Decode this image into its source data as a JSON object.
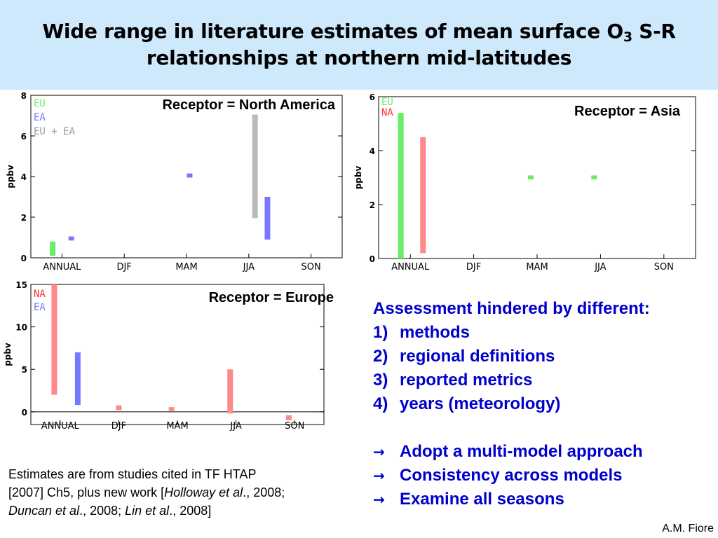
{
  "slide": {
    "title_pre": "Wide range in literature estimates of mean surface O",
    "title_sub": "3",
    "title_post": " S-R relationships at northern mid-latitudes",
    "banner_color": "#cde9fb",
    "author": "A.M. Fiore"
  },
  "colors": {
    "EU": "#66ee66",
    "EA": "#7777ff",
    "EU + EA": "#bbbbbb",
    "NA": "#ff8888"
  },
  "chart_data": [
    {
      "type": "bar",
      "title": "Receptor = North America",
      "ylabel": "ppbv",
      "categories": [
        "ANNUAL",
        "DJF",
        "MAM",
        "JJA",
        "SON"
      ],
      "ylim": [
        0,
        8
      ],
      "yticks": [
        0,
        2,
        4,
        6,
        8
      ],
      "legend": [
        {
          "name": "EU",
          "color": "#66ee66"
        },
        {
          "name": "EA",
          "color": "#7777ff"
        },
        {
          "name": "EU + EA",
          "color": "#999999"
        }
      ],
      "series": [
        {
          "name": "EU",
          "ranges": [
            {
              "cat": 0,
              "offset": -0.15,
              "low": 0.1,
              "high": 0.8
            }
          ]
        },
        {
          "name": "EA",
          "ranges": [
            {
              "cat": 0,
              "offset": 0.15,
              "low": 0.85,
              "high": 1.05
            },
            {
              "cat": 2,
              "offset": 0.05,
              "low": 3.95,
              "high": 4.15
            },
            {
              "cat": 3,
              "offset": 0.3,
              "low": 0.9,
              "high": 3.0
            }
          ]
        },
        {
          "name": "EU + EA",
          "ranges": [
            {
              "cat": 3,
              "offset": 0.1,
              "low": 1.95,
              "high": 7.05
            }
          ]
        }
      ]
    },
    {
      "type": "bar",
      "title": "Receptor = Asia",
      "ylabel": "ppbv",
      "categories": [
        "ANNUAL",
        "DJF",
        "MAM",
        "JJA",
        "SON"
      ],
      "ylim": [
        0,
        6
      ],
      "yticks": [
        0,
        2,
        4,
        6
      ],
      "legend": [
        {
          "name": "EU",
          "color": "#66ee66"
        },
        {
          "name": "NA",
          "color": "#ff3333"
        }
      ],
      "series": [
        {
          "name": "EU",
          "ranges": [
            {
              "cat": 0,
              "offset": -0.15,
              "low": 0.0,
              "high": 5.4
            },
            {
              "cat": 2,
              "offset": -0.1,
              "low": 2.93,
              "high": 3.08
            },
            {
              "cat": 3,
              "offset": -0.1,
              "low": 2.93,
              "high": 3.08
            }
          ]
        },
        {
          "name": "NA",
          "ranges": [
            {
              "cat": 0,
              "offset": 0.2,
              "low": 0.2,
              "high": 4.5
            }
          ]
        }
      ]
    },
    {
      "type": "bar",
      "title": "Receptor = Europe",
      "ylabel": "ppbv",
      "categories": [
        "ANNUAL",
        "DJF",
        "MAM",
        "JJA",
        "SON"
      ],
      "ylim": [
        -1.5,
        15
      ],
      "yticks": [
        0,
        5,
        10,
        15
      ],
      "legend": [
        {
          "name": "NA",
          "color": "#ff3333"
        },
        {
          "name": "EA",
          "color": "#7777ff"
        }
      ],
      "series": [
        {
          "name": "NA",
          "ranges": [
            {
              "cat": 0,
              "offset": -0.1,
              "low": 2.0,
              "high": 15.0
            },
            {
              "cat": 1,
              "offset": 0.0,
              "low": 0.2,
              "high": 0.75
            },
            {
              "cat": 2,
              "offset": -0.1,
              "low": 0.1,
              "high": 0.55
            },
            {
              "cat": 3,
              "offset": -0.1,
              "low": -0.2,
              "high": 5.0
            },
            {
              "cat": 4,
              "offset": -0.1,
              "low": -1.0,
              "high": -0.4
            }
          ]
        },
        {
          "name": "EA",
          "ranges": [
            {
              "cat": 0,
              "offset": 0.3,
              "low": 0.8,
              "high": 7.0
            }
          ]
        }
      ]
    }
  ],
  "assessment": {
    "heading": "Assessment hindered by different:",
    "items": [
      {
        "num": "1)",
        "text": "methods"
      },
      {
        "num": "2)",
        "text": "regional definitions"
      },
      {
        "num": "3)",
        "text": "reported metrics"
      },
      {
        "num": "4)",
        "text": "years (meteorology)"
      }
    ],
    "conclusions": [
      "Adopt a multi-model approach",
      "Consistency across models",
      "Examine all seasons"
    ]
  },
  "citation": {
    "line1": "Estimates are from studies cited in TF HTAP",
    "line2a": "[2007] Ch5, plus new work [",
    "ref1": "Holloway et al",
    "line2b": "., 2008;",
    "ref2": "Duncan et al",
    "line3a": "., 2008; ",
    "ref3": "Lin et al",
    "line3b": "., 2008]"
  }
}
